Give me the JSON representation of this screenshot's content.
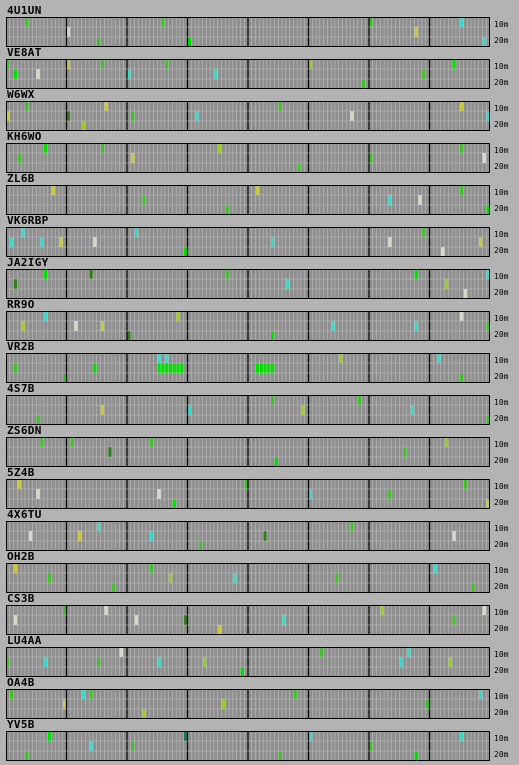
{
  "bands": {
    "top": "10m",
    "bottom": "20m"
  },
  "colors": {
    "background": "#b3b3b3",
    "cell": "#8f8f8f",
    "cell_grid": "#c4c4c4",
    "hour_divider": "#000000",
    "level_colors": [
      "#2e7d1a",
      "#3fbf2a",
      "#00e000",
      "#9ccc2a",
      "#c8c840",
      "#3ed6c6",
      "#d8d8c8",
      "#1a7a5a"
    ]
  },
  "stations": [
    {
      "call": "4U1UN",
      "spots": [
        [
          5,
          0,
          1
        ],
        [
          16,
          1,
          6
        ],
        [
          24,
          2,
          1
        ],
        [
          41,
          0,
          1
        ],
        [
          48,
          2,
          2
        ],
        [
          96,
          0,
          1
        ],
        [
          108,
          1,
          4
        ],
        [
          120,
          0,
          5
        ],
        [
          126,
          2,
          5
        ]
      ]
    },
    {
      "call": "VE8AT",
      "spots": [
        [
          0,
          0,
          1
        ],
        [
          2,
          1,
          2
        ],
        [
          8,
          1,
          6
        ],
        [
          16,
          0,
          4
        ],
        [
          25,
          0,
          1
        ],
        [
          32,
          1,
          5
        ],
        [
          42,
          0,
          1
        ],
        [
          55,
          1,
          5
        ],
        [
          80,
          0,
          3
        ],
        [
          94,
          2,
          1
        ],
        [
          110,
          1,
          1
        ],
        [
          118,
          0,
          2
        ]
      ]
    },
    {
      "call": "W6WX",
      "spots": [
        [
          0,
          1,
          4
        ],
        [
          5,
          0,
          1
        ],
        [
          16,
          1,
          0
        ],
        [
          20,
          2,
          3
        ],
        [
          26,
          0,
          4
        ],
        [
          33,
          1,
          1
        ],
        [
          50,
          1,
          5
        ],
        [
          72,
          0,
          1
        ],
        [
          91,
          1,
          6
        ],
        [
          120,
          0,
          4
        ],
        [
          127,
          1,
          5
        ]
      ]
    },
    {
      "call": "KH6WO",
      "spots": [
        [
          3,
          1,
          1
        ],
        [
          10,
          0,
          2
        ],
        [
          25,
          0,
          1
        ],
        [
          33,
          1,
          4
        ],
        [
          56,
          0,
          3
        ],
        [
          77,
          2,
          1
        ],
        [
          96,
          1,
          1
        ],
        [
          120,
          0,
          1
        ],
        [
          126,
          1,
          6
        ]
      ]
    },
    {
      "call": "ZL6B",
      "spots": [
        [
          12,
          0,
          4
        ],
        [
          36,
          1,
          1
        ],
        [
          58,
          2,
          1
        ],
        [
          66,
          0,
          4
        ],
        [
          101,
          1,
          5
        ],
        [
          109,
          1,
          6
        ],
        [
          120,
          0,
          1
        ],
        [
          127,
          2,
          2
        ]
      ]
    },
    {
      "call": "VK6RBP",
      "spots": [
        [
          1,
          1,
          5
        ],
        [
          4,
          0,
          5
        ],
        [
          9,
          1,
          5
        ],
        [
          14,
          1,
          4
        ],
        [
          23,
          1,
          6
        ],
        [
          34,
          0,
          5
        ],
        [
          47,
          2,
          2
        ],
        [
          70,
          1,
          5
        ],
        [
          101,
          1,
          6
        ],
        [
          110,
          0,
          1
        ],
        [
          115,
          2,
          6
        ],
        [
          125,
          1,
          4
        ]
      ]
    },
    {
      "call": "JA2IGY",
      "spots": [
        [
          2,
          1,
          0
        ],
        [
          10,
          0,
          2
        ],
        [
          22,
          0,
          0
        ],
        [
          58,
          0,
          1
        ],
        [
          74,
          1,
          5
        ],
        [
          108,
          0,
          2
        ],
        [
          116,
          1,
          3
        ],
        [
          121,
          2,
          6
        ],
        [
          127,
          0,
          5
        ]
      ]
    },
    {
      "call": "RR9O",
      "spots": [
        [
          4,
          1,
          3
        ],
        [
          10,
          0,
          5
        ],
        [
          18,
          1,
          6
        ],
        [
          25,
          1,
          4
        ],
        [
          32,
          2,
          0
        ],
        [
          45,
          0,
          3
        ],
        [
          70,
          2,
          2
        ],
        [
          86,
          1,
          5
        ],
        [
          108,
          1,
          5
        ],
        [
          120,
          0,
          6
        ],
        [
          127,
          1,
          1
        ]
      ]
    },
    {
      "call": "VR2B",
      "spots": [
        [
          2,
          1,
          1
        ],
        [
          15,
          2,
          1
        ],
        [
          23,
          1,
          2
        ],
        [
          40,
          0,
          5
        ],
        [
          42,
          0,
          5
        ],
        [
          40,
          1,
          2
        ],
        [
          41,
          1,
          2
        ],
        [
          42,
          1,
          2
        ],
        [
          43,
          1,
          2
        ],
        [
          44,
          1,
          2
        ],
        [
          45,
          1,
          2
        ],
        [
          46,
          1,
          2
        ],
        [
          66,
          1,
          2
        ],
        [
          67,
          1,
          2
        ],
        [
          68,
          1,
          2
        ],
        [
          69,
          1,
          2
        ],
        [
          70,
          1,
          2
        ],
        [
          88,
          0,
          3
        ],
        [
          114,
          0,
          5
        ],
        [
          120,
          2,
          1
        ]
      ]
    },
    {
      "call": "4S7B",
      "spots": [
        [
          8,
          2,
          1
        ],
        [
          25,
          1,
          4
        ],
        [
          48,
          1,
          5
        ],
        [
          70,
          0,
          1
        ],
        [
          78,
          1,
          3
        ],
        [
          93,
          0,
          1
        ],
        [
          107,
          1,
          5
        ],
        [
          127,
          2,
          1
        ]
      ]
    },
    {
      "call": "ZS6DN",
      "spots": [
        [
          9,
          0,
          1
        ],
        [
          17,
          0,
          1
        ],
        [
          27,
          1,
          0
        ],
        [
          38,
          0,
          1
        ],
        [
          71,
          2,
          2
        ],
        [
          105,
          1,
          1
        ],
        [
          116,
          0,
          3
        ]
      ]
    },
    {
      "call": "5Z4B",
      "spots": [
        [
          3,
          0,
          4
        ],
        [
          8,
          1,
          6
        ],
        [
          40,
          1,
          6
        ],
        [
          44,
          2,
          2
        ],
        [
          63,
          0,
          1
        ],
        [
          80,
          1,
          5
        ],
        [
          101,
          1,
          1
        ],
        [
          121,
          0,
          1
        ],
        [
          127,
          2,
          4
        ]
      ]
    },
    {
      "call": "4X6TU",
      "spots": [
        [
          6,
          1,
          6
        ],
        [
          19,
          1,
          4
        ],
        [
          24,
          0,
          5
        ],
        [
          38,
          1,
          5
        ],
        [
          51,
          2,
          1
        ],
        [
          68,
          1,
          0
        ],
        [
          91,
          0,
          1
        ],
        [
          118,
          1,
          6
        ],
        [
          128,
          0,
          2
        ]
      ]
    },
    {
      "call": "OH2B",
      "spots": [
        [
          2,
          0,
          4
        ],
        [
          11,
          1,
          1
        ],
        [
          28,
          2,
          1
        ],
        [
          38,
          0,
          1
        ],
        [
          43,
          1,
          3
        ],
        [
          60,
          1,
          5
        ],
        [
          87,
          1,
          1
        ],
        [
          113,
          0,
          5
        ],
        [
          123,
          2,
          1
        ]
      ]
    },
    {
      "call": "CS3B",
      "spots": [
        [
          2,
          1,
          6
        ],
        [
          15,
          0,
          1
        ],
        [
          26,
          0,
          6
        ],
        [
          34,
          1,
          6
        ],
        [
          47,
          1,
          0
        ],
        [
          56,
          2,
          4
        ],
        [
          73,
          1,
          5
        ],
        [
          99,
          0,
          3
        ],
        [
          118,
          1,
          1
        ],
        [
          126,
          0,
          6
        ]
      ]
    },
    {
      "call": "LU4AA",
      "spots": [
        [
          0,
          1,
          1
        ],
        [
          10,
          1,
          5
        ],
        [
          24,
          1,
          1
        ],
        [
          30,
          0,
          6
        ],
        [
          40,
          1,
          5
        ],
        [
          52,
          1,
          3
        ],
        [
          62,
          2,
          2
        ],
        [
          83,
          0,
          1
        ],
        [
          104,
          1,
          5
        ],
        [
          106,
          0,
          5
        ],
        [
          117,
          1,
          3
        ]
      ]
    },
    {
      "call": "OA4B",
      "spots": [
        [
          1,
          0,
          1
        ],
        [
          15,
          1,
          4
        ],
        [
          20,
          0,
          5
        ],
        [
          22,
          0,
          1
        ],
        [
          36,
          2,
          3
        ],
        [
          57,
          1,
          3
        ],
        [
          76,
          0,
          1
        ],
        [
          111,
          1,
          1
        ],
        [
          125,
          0,
          5
        ]
      ]
    },
    {
      "call": "YV5B",
      "spots": [
        [
          5,
          2,
          1
        ],
        [
          11,
          0,
          2
        ],
        [
          22,
          1,
          5
        ],
        [
          33,
          1,
          1
        ],
        [
          47,
          0,
          7
        ],
        [
          72,
          2,
          1
        ],
        [
          80,
          0,
          5
        ],
        [
          96,
          1,
          1
        ],
        [
          108,
          2,
          2
        ],
        [
          120,
          0,
          5
        ]
      ]
    }
  ]
}
